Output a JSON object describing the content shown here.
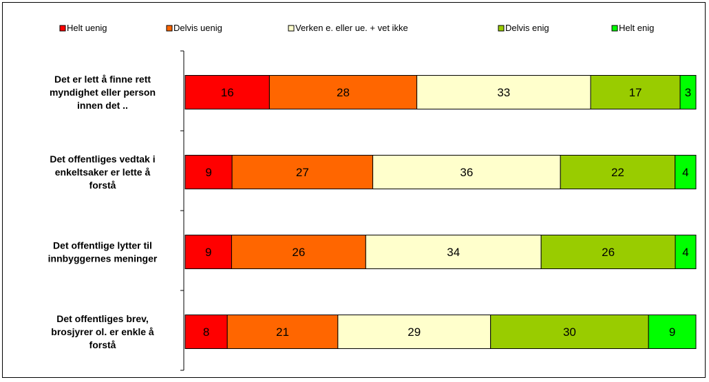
{
  "chart_data": {
    "type": "bar",
    "orientation": "horizontal-stacked",
    "categories": [
      [
        "Det er lett å finne rett",
        "myndighet eller person",
        "innen det .."
      ],
      [
        "Det offentliges vedtak i",
        "enkeltsaker er lette å",
        "forstå"
      ],
      [
        "Det offentlige lytter til",
        "innbyggernes meninger"
      ],
      [
        "Det offentliges brev,",
        "brosjyrer ol. er enkle å",
        "forstå"
      ]
    ],
    "series": [
      {
        "name": "Helt uenig",
        "color": "#ff0000",
        "values": [
          16,
          9,
          9,
          8
        ]
      },
      {
        "name": "Delvis uenig",
        "color": "#ff6600",
        "values": [
          28,
          27,
          26,
          21
        ]
      },
      {
        "name": "Verken e. eller ue. + vet ikke",
        "color": "#ffffcc",
        "values": [
          33,
          36,
          34,
          29
        ]
      },
      {
        "name": "Delvis enig",
        "color": "#99cc00",
        "values": [
          17,
          22,
          26,
          30
        ]
      },
      {
        "name": "Helt enig",
        "color": "#00ff00",
        "values": [
          3,
          4,
          4,
          9
        ]
      }
    ],
    "legend_position": "top"
  }
}
